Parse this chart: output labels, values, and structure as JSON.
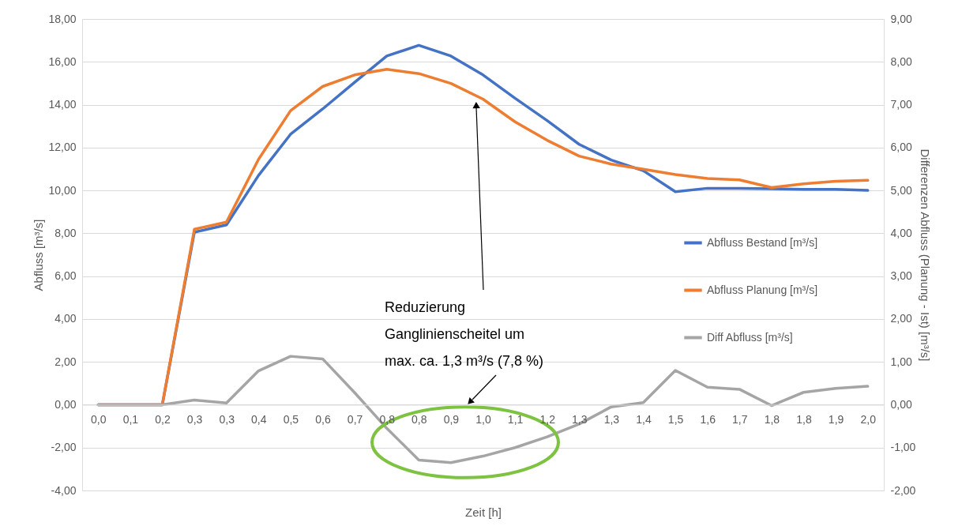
{
  "chart_data": {
    "type": "line",
    "xlabel": "Zeit [h]",
    "ylabel": "Abfluss [m³/s]",
    "y2label": "Differenzen Abfluss (Planung - Ist) [m³/s]",
    "categories": [
      "0,0",
      "0,1",
      "0,2",
      "0,3",
      "0,3",
      "0,4",
      "0,5",
      "0,6",
      "0,7",
      "0,8",
      "0,8",
      "0,9",
      "1,0",
      "1,1",
      "1,2",
      "1,3",
      "1,3",
      "1,4",
      "1,5",
      "1,6",
      "1,7",
      "1,8",
      "1,8",
      "1,9",
      "2,0"
    ],
    "series": [
      {
        "name": "Abfluss Bestand [m³/s]",
        "color": "#4472c4",
        "values": [
          0,
          0,
          0,
          8.05,
          8.39,
          10.7,
          12.62,
          13.8,
          15.05,
          16.27,
          16.77,
          16.27,
          15.39,
          14.3,
          13.26,
          12.15,
          11.42,
          10.92,
          9.94,
          10.1,
          10.1,
          10.08,
          10.05,
          10.05,
          10.0
        ]
      },
      {
        "name": "Abfluss Planung [m³/s]",
        "color": "#ed7d31",
        "values": [
          0,
          0,
          0,
          8.19,
          8.52,
          11.45,
          13.72,
          14.85,
          15.39,
          15.65,
          15.45,
          14.99,
          14.26,
          13.2,
          12.34,
          11.6,
          11.23,
          10.99,
          10.74,
          10.56,
          10.49,
          10.13,
          10.31,
          10.43,
          10.47
        ]
      },
      {
        "name": "Diff Abfluss [m³/s]",
        "color": "#a5a5a5",
        "axis": "y2",
        "values": [
          0,
          0,
          0,
          0.11,
          0.04,
          0.79,
          1.13,
          1.07,
          0.28,
          -0.55,
          -1.29,
          -1.35,
          -1.2,
          -1.0,
          -0.75,
          -0.45,
          -0.05,
          0.05,
          0.8,
          0.41,
          0.36,
          -0.02,
          0.29,
          0.38,
          0.43
        ]
      }
    ],
    "ylim": [
      -4,
      18
    ],
    "yticks": [
      {
        "value": -4,
        "label": "-4,00"
      },
      {
        "value": -2,
        "label": "-2,00"
      },
      {
        "value": 0,
        "label": "0,00"
      },
      {
        "value": 2,
        "label": "2,00"
      },
      {
        "value": 4,
        "label": "4,00"
      },
      {
        "value": 6,
        "label": "6,00"
      },
      {
        "value": 8,
        "label": "8,00"
      },
      {
        "value": 10,
        "label": "10,00"
      },
      {
        "value": 12,
        "label": "12,00"
      },
      {
        "value": 14,
        "label": "14,00"
      },
      {
        "value": 16,
        "label": "16,00"
      },
      {
        "value": 18,
        "label": "18,00"
      }
    ],
    "y2lim": [
      -2,
      9
    ],
    "y2ticks": [
      {
        "value": -2,
        "label": "-2,00"
      },
      {
        "value": -1,
        "label": "-1,00"
      },
      {
        "value": 0,
        "label": "0,00"
      },
      {
        "value": 1,
        "label": "1,00"
      },
      {
        "value": 2,
        "label": "2,00"
      },
      {
        "value": 3,
        "label": "3,00"
      },
      {
        "value": 4,
        "label": "4,00"
      },
      {
        "value": 5,
        "label": "5,00"
      },
      {
        "value": 6,
        "label": "6,00"
      },
      {
        "value": 7,
        "label": "7,00"
      },
      {
        "value": 8,
        "label": "8,00"
      },
      {
        "value": 9,
        "label": "9,00"
      }
    ],
    "annotations": [
      "Reduzierung Ganglinienscheitel um max. ca. 1,3 m³/s (7,8 %)"
    ],
    "grid": "y",
    "legend": "right",
    "marker": "none",
    "line_style": "solid"
  }
}
